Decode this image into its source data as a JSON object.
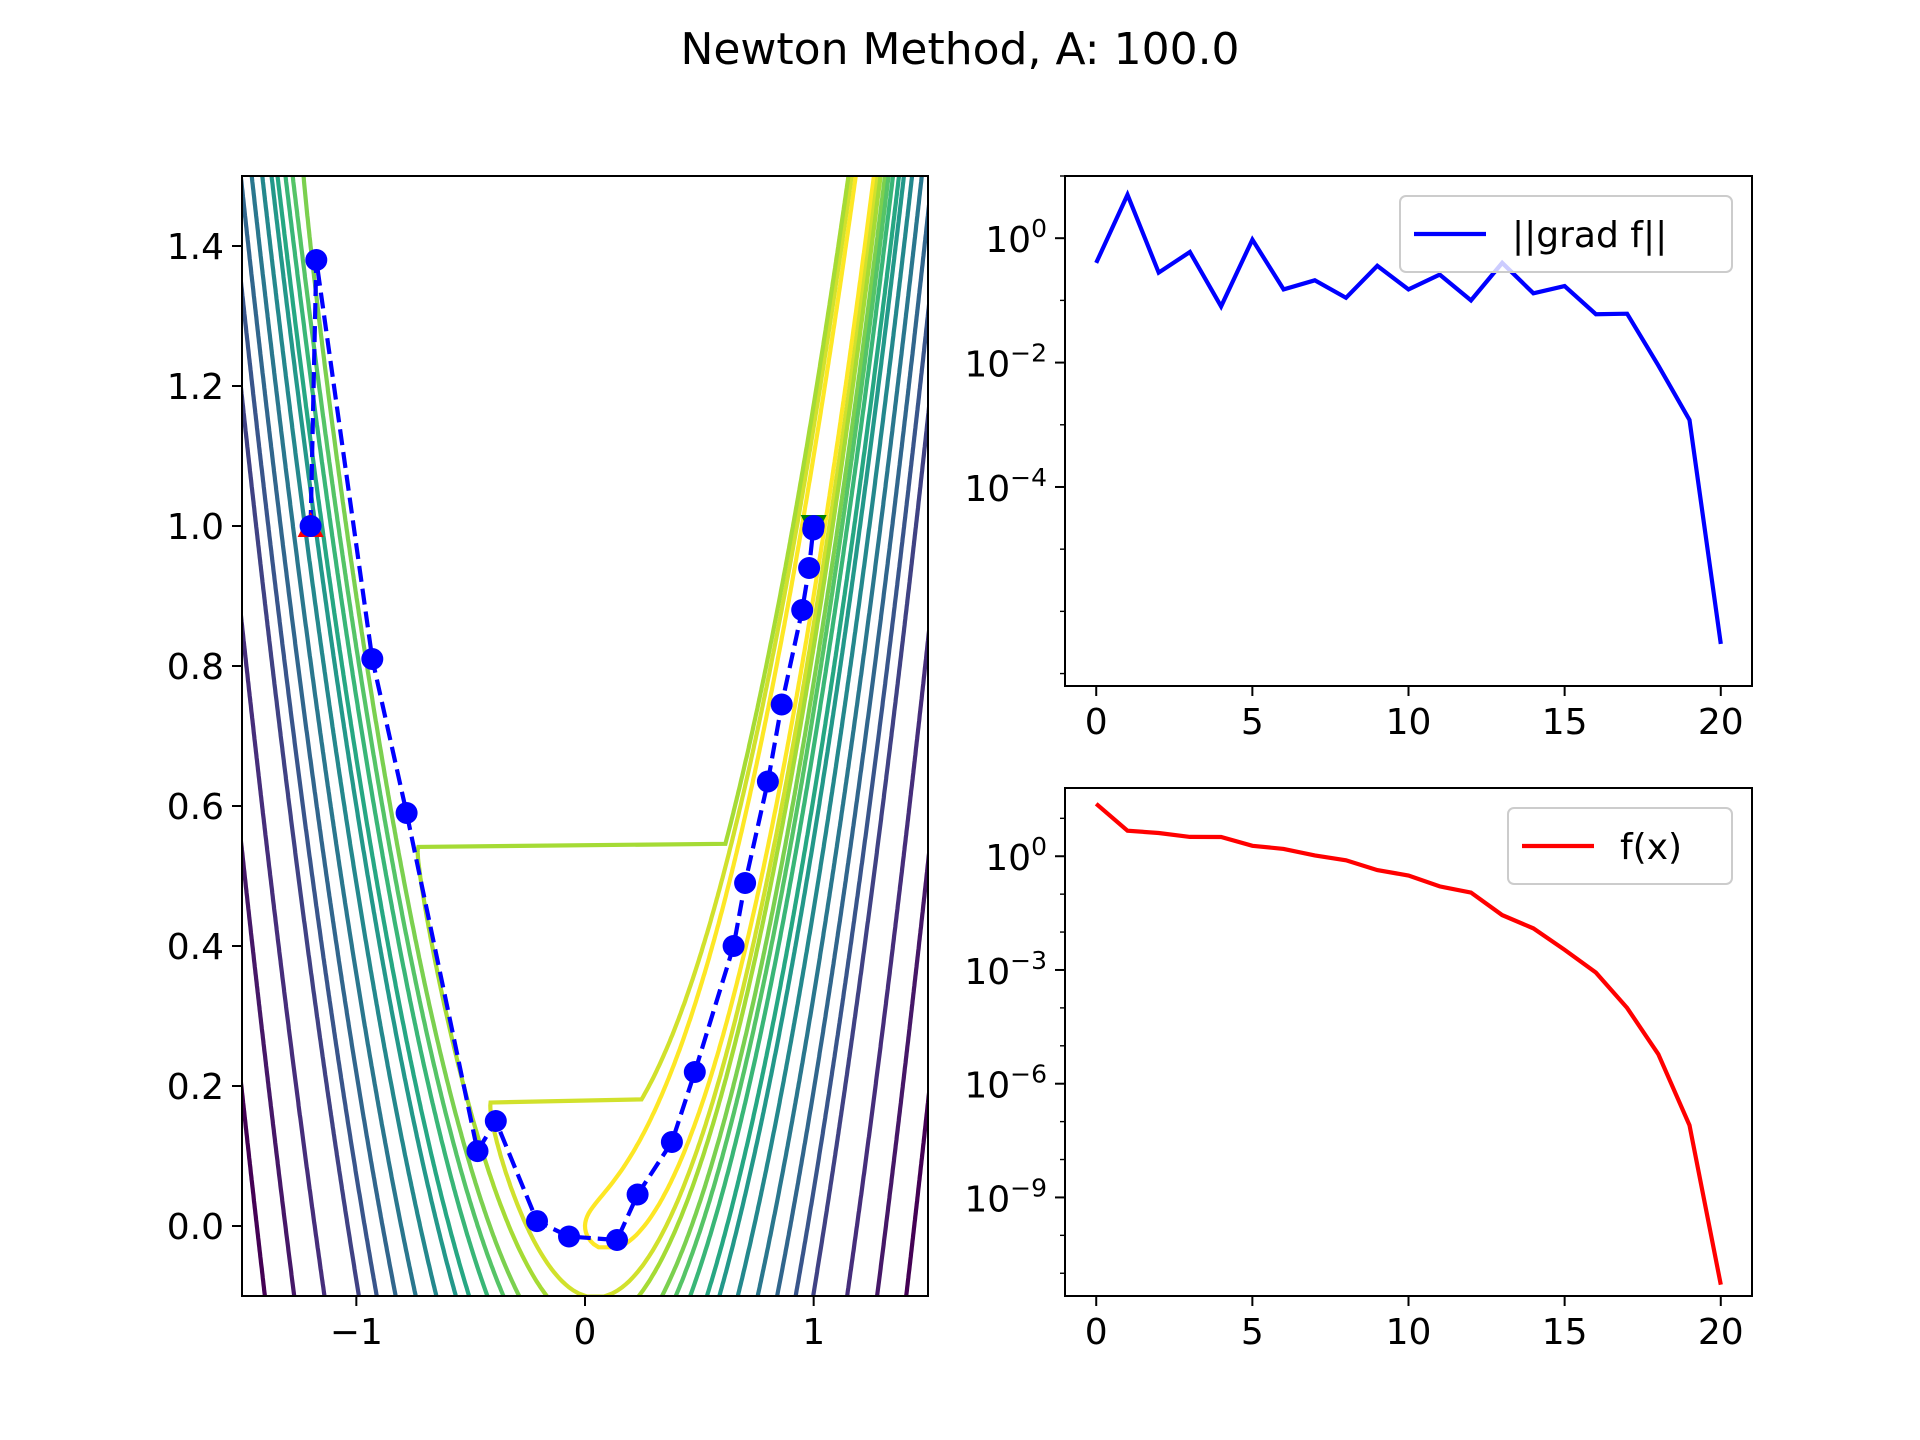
{
  "title": "Newton Method, A: 100.0",
  "colors": {
    "path": "#0000ff",
    "grad_line": "#0000ff",
    "f_line": "#ff0000",
    "start_marker": "#ff0000",
    "end_marker": "#008000",
    "contour_colormap": "viridis"
  },
  "chart_data": [
    {
      "type": "contour",
      "function": "(1-x)^2 + A*(y-x^2)^2",
      "A": 100.0,
      "xlim": [
        -1.5,
        1.5
      ],
      "ylim": [
        -0.1,
        1.5
      ],
      "xticks": [
        -1,
        0,
        1
      ],
      "xtick_labels": [
        "−1",
        "0",
        "1"
      ],
      "yticks": [
        0.0,
        0.2,
        0.4,
        0.6,
        0.8,
        1.0,
        1.2,
        1.4
      ],
      "ytick_labels": [
        "0.0",
        "0.2",
        "0.4",
        "0.6",
        "0.8",
        "1.0",
        "1.2",
        "1.4"
      ],
      "contour_levels": [
        1,
        2,
        3,
        5,
        7,
        10,
        15,
        20,
        30,
        45,
        65,
        90,
        120,
        200,
        300,
        430
      ],
      "path": {
        "x": [
          -1.2,
          -1.175,
          -0.93,
          -0.78,
          -0.47,
          -0.39,
          -0.21,
          -0.07,
          0.14,
          0.23,
          0.38,
          0.48,
          0.65,
          0.7,
          0.8,
          0.86,
          0.95,
          0.98,
          0.998,
          1.0
        ],
        "y": [
          1.0,
          1.38,
          0.81,
          0.59,
          0.107,
          0.15,
          0.007,
          -0.015,
          -0.02,
          0.045,
          0.12,
          0.22,
          0.4,
          0.49,
          0.635,
          0.745,
          0.88,
          0.94,
          0.995,
          1.0
        ],
        "line_style": "dashed",
        "marker": "circle"
      },
      "start_point": [
        -1.2,
        1.0
      ],
      "end_point": [
        1.0,
        1.0
      ]
    },
    {
      "type": "line",
      "yscale": "log",
      "x": [
        0,
        1,
        2,
        3,
        4,
        5,
        6,
        7,
        8,
        9,
        10,
        11,
        12,
        13,
        14,
        15,
        16,
        17,
        18,
        19,
        20
      ],
      "series": [
        {
          "name": "||grad f||",
          "values": [
            0.4,
            5.0,
            0.28,
            0.6,
            0.08,
            0.95,
            0.15,
            0.21,
            0.11,
            0.36,
            0.15,
            0.26,
            0.1,
            0.4,
            0.13,
            0.17,
            0.06,
            0.061,
            0.009,
            0.0012,
            3e-07
          ]
        }
      ],
      "xlim": [
        -1,
        21
      ],
      "ylog_range": [
        -7.2,
        1.0
      ],
      "xticks": [
        0,
        5,
        10,
        15,
        20
      ],
      "yticks_log": [
        0,
        -2,
        -4
      ],
      "ytick_base": "10",
      "ytick_exponents": [
        "0",
        "−2",
        "−4"
      ],
      "legend_position": "upper right"
    },
    {
      "type": "line",
      "yscale": "log",
      "x": [
        0,
        1,
        2,
        3,
        4,
        5,
        6,
        7,
        8,
        9,
        10,
        11,
        12,
        13,
        14,
        15,
        16,
        17,
        18,
        19,
        20
      ],
      "series": [
        {
          "name": "f(x)",
          "values": [
            24.2,
            4.73,
            4.09,
            3.23,
            3.21,
            1.88,
            1.56,
            1.05,
            0.78,
            0.43,
            0.31,
            0.16,
            0.11,
            0.028,
            0.0125,
            0.0034,
            0.00085,
            0.0001,
            6e-06,
            8e-08,
            5e-12
          ]
        }
      ],
      "xlim": [
        -1,
        21
      ],
      "ylog_range": [
        -11.6,
        1.8
      ],
      "xticks": [
        0,
        5,
        10,
        15,
        20
      ],
      "yticks_log": [
        0,
        -3,
        -6,
        -9
      ],
      "ytick_base": "10",
      "ytick_exponents": [
        "0",
        "−3",
        "−6",
        "−9"
      ],
      "legend_position": "upper right"
    }
  ]
}
